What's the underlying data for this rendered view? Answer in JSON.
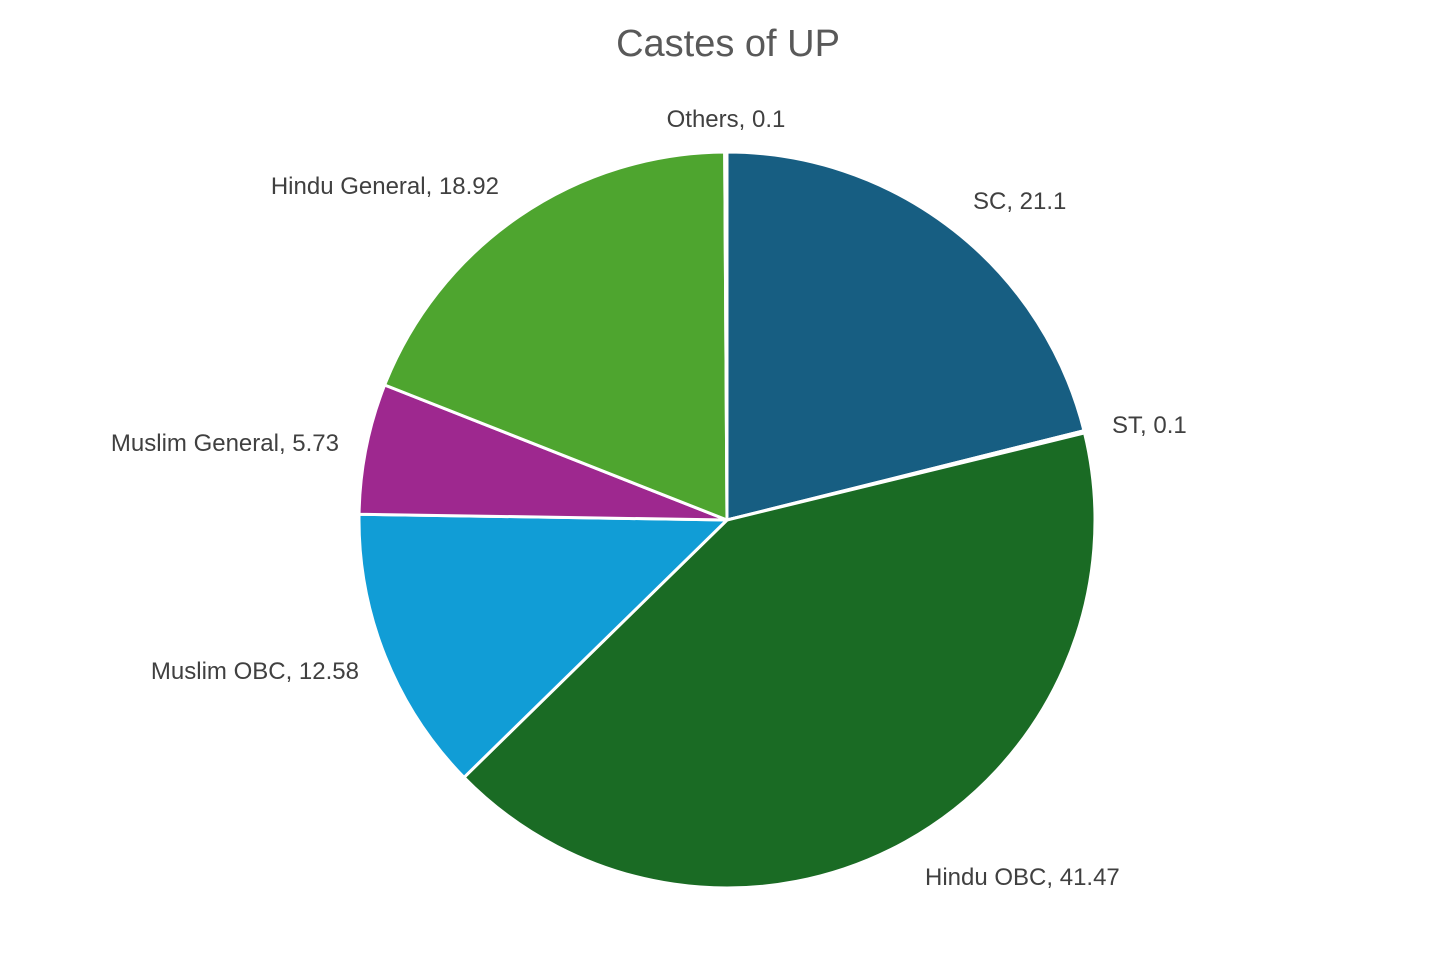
{
  "chart_data": {
    "type": "pie",
    "title": "Castes of UP",
    "slices": [
      {
        "label": "SC",
        "value": 21.1,
        "color": "#175E82"
      },
      {
        "label": "ST",
        "value": 0.1,
        "color": "#1E5C8A"
      },
      {
        "label": "Hindu OBC",
        "value": 41.47,
        "color": "#1A6B24"
      },
      {
        "label": "Muslim OBC",
        "value": 12.58,
        "color": "#119DD6"
      },
      {
        "label": "Muslim General",
        "value": 5.73,
        "color": "#9E288F"
      },
      {
        "label": "Hindu General",
        "value": 18.92,
        "color": "#4EA52F"
      },
      {
        "label": "Others",
        "value": 0.1,
        "color": "#3C9D3A"
      }
    ],
    "data_labels": [
      "SC, 21.1",
      "ST, 0.1",
      "Hindu OBC, 41.47",
      "Muslim OBC, 12.58",
      "Muslim General, 5.73",
      "Hindu General, 18.92",
      "Others, 0.1"
    ],
    "start_angle": "12 o'clock",
    "direction": "clockwise",
    "legend": "none"
  }
}
